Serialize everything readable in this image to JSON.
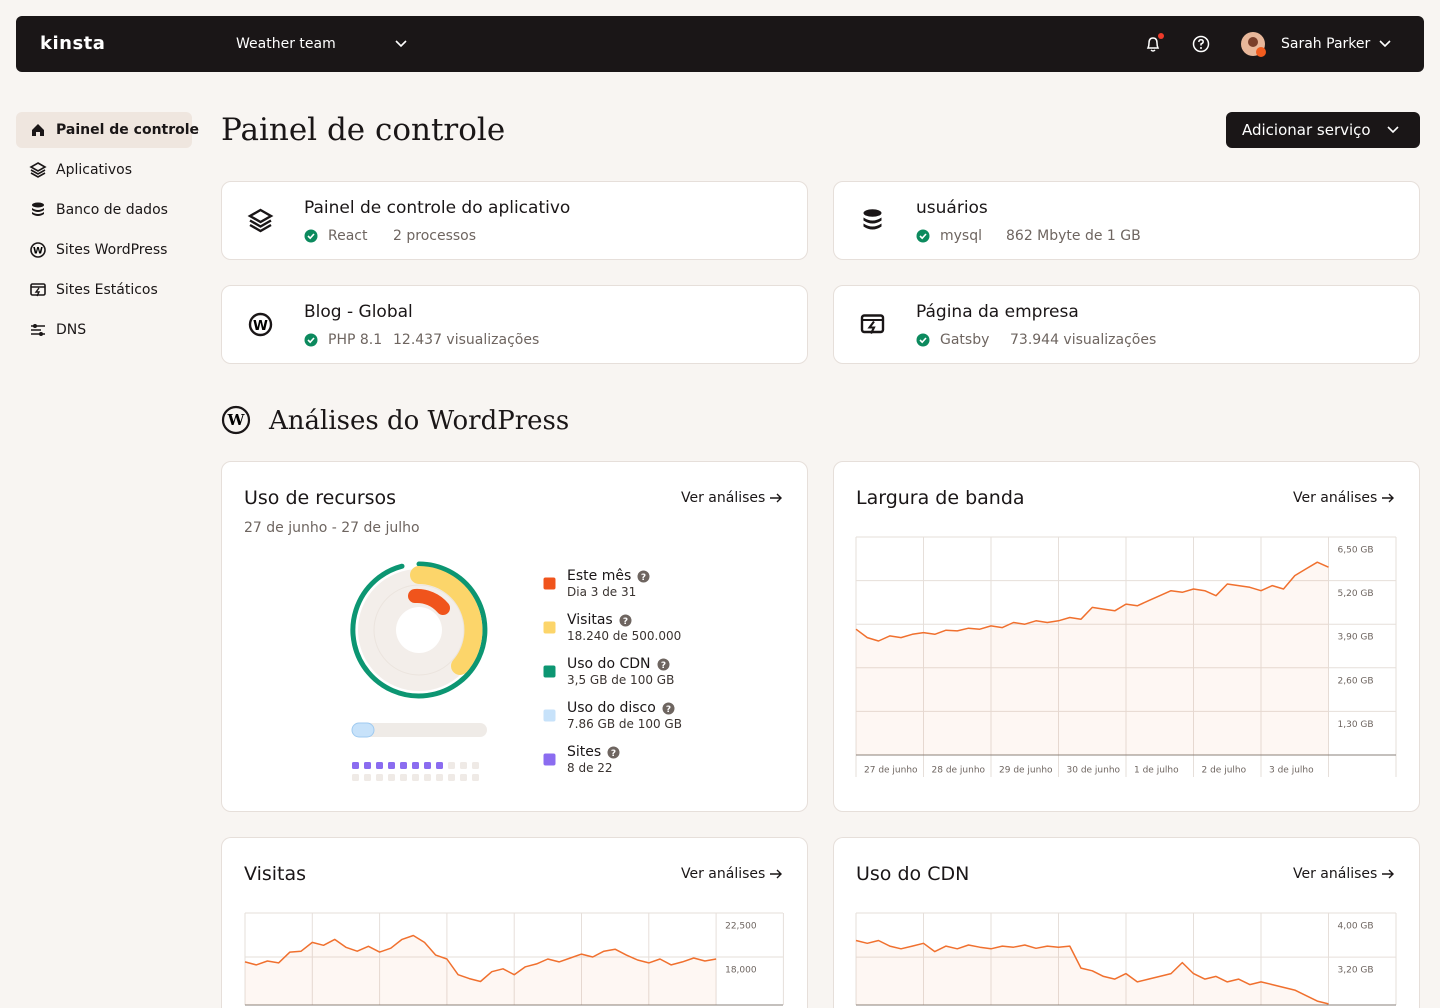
{
  "header": {
    "logo": "kinsta",
    "team": "Weather team",
    "user": "Sarah Parker"
  },
  "sidebar": [
    "Painel de controle",
    "Aplicativos",
    "Banco de dados",
    "Sites WordPress",
    "Sites Estáticos",
    "DNS"
  ],
  "page": {
    "title": "Painel de controle",
    "button": "Adicionar serviço"
  },
  "services": [
    {
      "name": "Painel de controle do aplicativo",
      "tech": "React",
      "detail": "2 processos"
    },
    {
      "name": "usuários",
      "tech": "mysql",
      "detail": "862 Mbyte de 1 GB"
    },
    {
      "name": "Blog - Global",
      "tech": "PHP 8.1",
      "detail": "12.437 visualizações"
    },
    {
      "name": "Página da empresa",
      "tech": "Gatsby",
      "detail": "73.944 visualizações"
    }
  ],
  "section_title": "Análises do WordPress",
  "resource_card": {
    "title": "Uso de recursos",
    "date_range": "27 de junho - 27 de julho",
    "legend": [
      {
        "label": "Este mês",
        "detail": "Dia 3 de 31"
      },
      {
        "label": "Visitas",
        "detail": "18.240 de 500.000"
      },
      {
        "label": "Uso do CDN",
        "detail": "3,5 GB de 100 GB"
      },
      {
        "label": "Uso do disco",
        "detail": "7.86 GB de 100 GB"
      },
      {
        "label": "Sites",
        "detail": "8 de 22"
      }
    ]
  },
  "analytics_links": [
    "Ver análises",
    "Ver análises",
    "Ver análises",
    "Ver análises"
  ],
  "chart_data": [
    {
      "type": "line",
      "title": "Largura de banda",
      "color": "#f0702e",
      "grid": true,
      "x_tick_labels": [
        "27 de junho",
        "28 de junho",
        "29 de junho",
        "30 de junho",
        "1 de julho",
        "2 de julho",
        "3 de julho"
      ],
      "values": [
        3.75,
        3.5,
        3.4,
        3.55,
        3.5,
        3.6,
        3.65,
        3.6,
        3.72,
        3.7,
        3.78,
        3.75,
        3.85,
        3.8,
        3.95,
        3.9,
        4.0,
        3.95,
        4.0,
        4.1,
        4.05,
        4.4,
        4.35,
        4.3,
        4.5,
        4.45,
        4.6,
        4.75,
        4.9,
        4.85,
        4.95,
        4.9,
        4.75,
        5.1,
        5.05,
        5.0,
        4.9,
        5.05,
        4.95,
        5.35,
        5.55,
        5.75,
        5.6
      ],
      "ylim": [
        0,
        6.5
      ],
      "yticks": [
        {
          "value": 6.5,
          "label": "6,50 GB"
        },
        {
          "value": 5.2,
          "label": "5,20 GB"
        },
        {
          "value": 3.9,
          "label": "3,90 GB"
        },
        {
          "value": 2.6,
          "label": "2,60 GB"
        },
        {
          "value": 1.3,
          "label": "1,30 GB"
        }
      ]
    },
    {
      "type": "line",
      "title": "Visitas",
      "color": "#f0702e",
      "grid": true,
      "values": [
        17500,
        17200,
        17600,
        17400,
        18500,
        18600,
        19500,
        19200,
        19800,
        19000,
        18600,
        19100,
        18500,
        18900,
        19800,
        20200,
        19500,
        18200,
        17800,
        16200,
        15800,
        15500,
        16500,
        16800,
        16200,
        17000,
        17300,
        17800,
        17500,
        17900,
        18300,
        18000,
        18600,
        18800,
        18200,
        17700,
        17400,
        17800,
        17200,
        17500,
        17900,
        17600,
        17800
      ],
      "ylim": [
        13100,
        22500
      ],
      "yticks": [
        {
          "value": 22500,
          "label": "22,500"
        },
        {
          "value": 18000,
          "label": "18,000"
        }
      ]
    },
    {
      "type": "line",
      "title": "Uso do CDN",
      "color": "#f0702e",
      "grid": true,
      "values": [
        3.5,
        3.45,
        3.5,
        3.4,
        3.35,
        3.4,
        3.45,
        3.3,
        3.4,
        3.35,
        3.42,
        3.38,
        3.35,
        3.4,
        3.38,
        3.42,
        3.36,
        3.4,
        3.38,
        3.4,
        3.0,
        2.95,
        2.85,
        2.8,
        2.9,
        2.75,
        2.8,
        2.85,
        2.9,
        3.1,
        2.9,
        2.8,
        2.85,
        2.75,
        2.8,
        2.7,
        2.75,
        2.7,
        2.65,
        2.6,
        2.5,
        2.4,
        2.35
      ],
      "ylim": [
        2.33,
        4.0
      ],
      "yticks": [
        {
          "value": 4.0,
          "label": "4,00 GB"
        },
        {
          "value": 3.2,
          "label": "3,20 GB"
        }
      ]
    }
  ]
}
